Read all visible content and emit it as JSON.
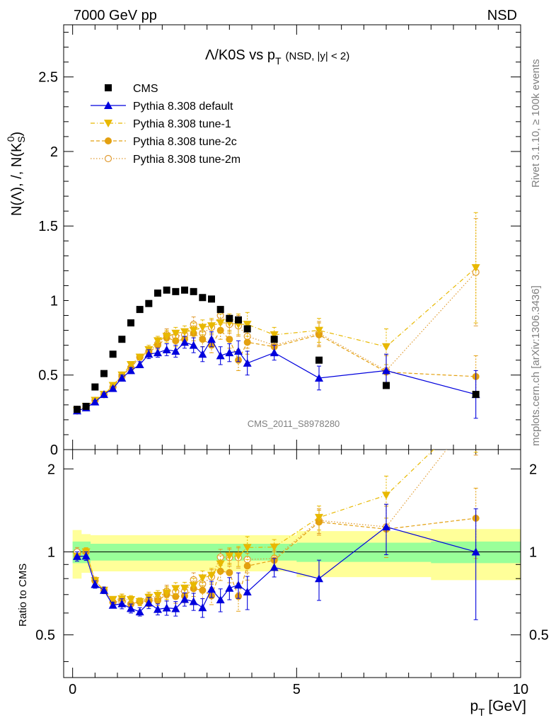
{
  "header": {
    "left": "7000 GeV pp",
    "right": "NSD"
  },
  "side_labels": {
    "rivet": "Rivet 3.1.10, ≥ 100k events",
    "mcplots": "mcplots.cern.ch [arXiv:1306.3436]"
  },
  "watermark": "CMS_2011_S8978280",
  "ratio_label": "Ratio to CMS",
  "chart_data": {
    "type": "scatter",
    "title_main": "Λ/K0S vs p",
    "title_sub": "T",
    "title_extra": "(NSD, |y| < 2)",
    "ylabel": "N(Λ), /, N(K",
    "ylabel_sub": "S",
    "ylabel_sup": "0",
    "xlabel": "p",
    "xlabel_sub": "T",
    "xlabel_unit": "[GeV]",
    "xlim": [
      -0.2,
      10
    ],
    "ylim": [
      0,
      2.85
    ],
    "ratio_ylim": "log 0.35 - 2.35",
    "x_ticks": [
      "0",
      "5",
      "10"
    ],
    "y_ticks": [
      "0",
      "0.5",
      "1",
      "1.5",
      "2",
      "2.5"
    ],
    "ratio_ticks": [
      "0.5",
      "1",
      "2"
    ],
    "legend_position": "top-left",
    "colors": {
      "cms": "#000000",
      "default": "#0000dd",
      "tune1": "#e8b800",
      "tune2c": "#e3a010",
      "tune2m": "#e09a30",
      "band_inner": "#99ff99",
      "band_outer": "#ffff99"
    },
    "cms": {
      "name": "CMS",
      "x": [
        0.1,
        0.3,
        0.5,
        0.7,
        0.9,
        1.1,
        1.3,
        1.5,
        1.7,
        1.9,
        2.1,
        2.3,
        2.5,
        2.7,
        2.9,
        3.1,
        3.3,
        3.5,
        3.7,
        3.9,
        4.5,
        5.5,
        7.0,
        9.0
      ],
      "y": [
        0.27,
        0.29,
        0.42,
        0.51,
        0.64,
        0.74,
        0.85,
        0.94,
        0.98,
        1.05,
        1.07,
        1.06,
        1.07,
        1.06,
        1.02,
        1.01,
        0.94,
        0.88,
        0.87,
        0.81,
        0.74,
        0.6,
        0.43,
        0.37
      ],
      "band_inner": [
        0.09,
        0.09,
        0.07,
        0.07,
        0.07,
        0.07,
        0.07,
        0.07,
        0.07,
        0.07,
        0.07,
        0.07,
        0.07,
        0.07,
        0.07,
        0.07,
        0.07,
        0.07,
        0.07,
        0.07,
        0.07,
        0.08,
        0.08,
        0.09
      ],
      "band_outer": [
        0.2,
        0.16,
        0.15,
        0.15,
        0.15,
        0.15,
        0.15,
        0.15,
        0.15,
        0.15,
        0.15,
        0.15,
        0.15,
        0.15,
        0.15,
        0.15,
        0.15,
        0.15,
        0.15,
        0.15,
        0.15,
        0.19,
        0.19,
        0.21
      ]
    },
    "series": [
      {
        "name": "Pythia 8.308 default",
        "key": "default",
        "marker": "triangle-up",
        "line": "solid",
        "x": [
          0.1,
          0.3,
          0.5,
          0.7,
          0.9,
          1.1,
          1.3,
          1.5,
          1.7,
          1.9,
          2.1,
          2.3,
          2.5,
          2.7,
          2.9,
          3.1,
          3.3,
          3.5,
          3.7,
          3.9,
          4.5,
          5.5,
          7.0,
          9.0
        ],
        "y": [
          0.26,
          0.28,
          0.32,
          0.37,
          0.41,
          0.48,
          0.53,
          0.57,
          0.64,
          0.65,
          0.67,
          0.66,
          0.72,
          0.7,
          0.64,
          0.74,
          0.63,
          0.65,
          0.66,
          0.58,
          0.65,
          0.48,
          0.53,
          0.37
        ],
        "err": [
          0.01,
          0.01,
          0.01,
          0.01,
          0.01,
          0.02,
          0.02,
          0.02,
          0.03,
          0.03,
          0.04,
          0.04,
          0.04,
          0.05,
          0.05,
          0.05,
          0.06,
          0.06,
          0.07,
          0.08,
          0.05,
          0.08,
          0.11,
          0.16
        ]
      },
      {
        "name": "Pythia 8.308 tune-1",
        "key": "tune1",
        "marker": "triangle-down",
        "line": "dashdot",
        "x": [
          0.1,
          0.3,
          0.5,
          0.7,
          0.9,
          1.1,
          1.3,
          1.5,
          1.7,
          1.9,
          2.1,
          2.3,
          2.5,
          2.7,
          2.9,
          3.1,
          3.3,
          3.5,
          3.7,
          3.9,
          4.5,
          5.5,
          7.0,
          9.0
        ],
        "y": [
          0.26,
          0.29,
          0.33,
          0.37,
          0.43,
          0.5,
          0.57,
          0.62,
          0.67,
          0.73,
          0.76,
          0.78,
          0.79,
          0.8,
          0.82,
          0.83,
          0.85,
          0.85,
          0.84,
          0.84,
          0.77,
          0.8,
          0.69,
          1.22
        ],
        "err": [
          0.01,
          0.01,
          0.01,
          0.01,
          0.01,
          0.02,
          0.02,
          0.02,
          0.03,
          0.03,
          0.04,
          0.04,
          0.04,
          0.05,
          0.05,
          0.05,
          0.06,
          0.06,
          0.07,
          0.08,
          0.05,
          0.08,
          0.12,
          0.37
        ]
      },
      {
        "name": "Pythia 8.308 tune-2c",
        "key": "tune2c",
        "marker": "circle",
        "line": "dashed",
        "x": [
          0.1,
          0.3,
          0.5,
          0.7,
          0.9,
          1.1,
          1.3,
          1.5,
          1.7,
          1.9,
          2.1,
          2.3,
          2.5,
          2.7,
          2.9,
          3.1,
          3.3,
          3.5,
          3.7,
          3.9,
          4.5,
          5.5,
          7.0,
          9.0
        ],
        "y": [
          0.26,
          0.29,
          0.33,
          0.37,
          0.42,
          0.5,
          0.55,
          0.62,
          0.65,
          0.7,
          0.75,
          0.73,
          0.74,
          0.78,
          0.74,
          0.7,
          0.8,
          0.74,
          0.6,
          0.72,
          0.69,
          0.77,
          0.52,
          0.49
        ],
        "err": [
          0.01,
          0.01,
          0.01,
          0.01,
          0.01,
          0.02,
          0.02,
          0.02,
          0.03,
          0.03,
          0.04,
          0.04,
          0.04,
          0.05,
          0.05,
          0.05,
          0.06,
          0.06,
          0.07,
          0.08,
          0.05,
          0.08,
          0.11,
          0.14
        ]
      },
      {
        "name": "Pythia 8.308 tune-2m",
        "key": "tune2m",
        "marker": "open-circle",
        "line": "dotted",
        "x": [
          0.1,
          0.3,
          0.5,
          0.7,
          0.9,
          1.1,
          1.3,
          1.5,
          1.7,
          1.9,
          2.1,
          2.3,
          2.5,
          2.7,
          2.9,
          3.1,
          3.3,
          3.5,
          3.7,
          3.9,
          4.5,
          5.5,
          7.0,
          9.0
        ],
        "y": [
          0.27,
          0.29,
          0.33,
          0.37,
          0.42,
          0.49,
          0.55,
          0.62,
          0.66,
          0.71,
          0.77,
          0.76,
          0.77,
          0.84,
          0.78,
          0.82,
          0.9,
          0.84,
          0.83,
          0.76,
          0.7,
          0.78,
          0.53,
          1.19
        ],
        "err": [
          0.01,
          0.01,
          0.01,
          0.01,
          0.01,
          0.02,
          0.02,
          0.02,
          0.03,
          0.03,
          0.04,
          0.04,
          0.04,
          0.05,
          0.05,
          0.05,
          0.06,
          0.06,
          0.07,
          0.08,
          0.05,
          0.08,
          0.11,
          0.36
        ]
      }
    ]
  }
}
